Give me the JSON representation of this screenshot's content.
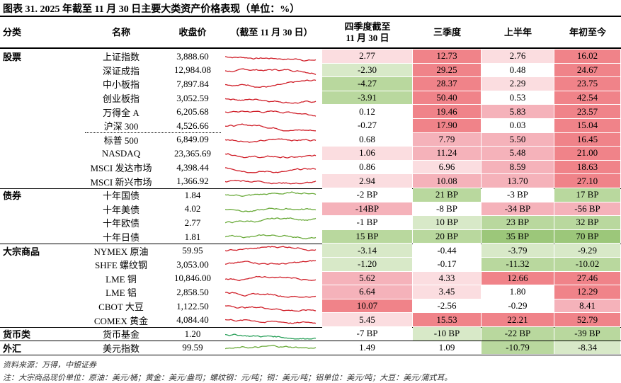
{
  "title": "图表 31. 2025 年截至 11 月 30 日主要大类资产价格表现（单位：%）",
  "header": {
    "group": "分类",
    "name": "名称",
    "close": "收盘价",
    "trend": "（截至 11 月 30 日）",
    "q4": [
      "四季度截至",
      "11 月 30 日"
    ],
    "q3": "三季度",
    "h1": "上半年",
    "ytd": "年初至今"
  },
  "groups": [
    {
      "name": "股票",
      "spark_color": "#d0202a",
      "rows": [
        [
          "上证指数",
          "3,888.60",
          "2.77",
          "12.73",
          "2.76",
          "16.02",
          [
            "#fbdde0",
            "#f08389",
            "#fbdde0",
            "#f08389"
          ]
        ],
        [
          "深证成指",
          "12,984.08",
          "-2.30",
          "29.25",
          "0.48",
          "24.67",
          [
            "#d8e9c8",
            "#f08389",
            "#ffffff",
            "#f08389"
          ]
        ],
        [
          "中小板指",
          "7,897.84",
          "-4.27",
          "28.37",
          "2.29",
          "23.75",
          [
            "#b9d89e",
            "#f08389",
            "#fbdde0",
            "#f08389"
          ]
        ],
        [
          "创业板指",
          "3,052.59",
          "-3.91",
          "50.40",
          "0.53",
          "42.54",
          [
            "#b9d89e",
            "#f08389",
            "#ffffff",
            "#f08389"
          ]
        ],
        [
          "万得全 A",
          "6,205.68",
          "0.12",
          "19.46",
          "5.83",
          "23.57",
          [
            "#ffffff",
            "#f08389",
            "#f5b2ba",
            "#f08389"
          ]
        ],
        [
          "沪深 300",
          "4,526.66",
          "-0.27",
          "17.90",
          "0.03",
          "15.04",
          [
            "#ffffff",
            "#f08389",
            "#ffffff",
            "#f08389"
          ]
        ],
        [
          "标普 500",
          "6,849.09",
          "0.68",
          "7.79",
          "5.50",
          "16.45",
          [
            "#ffffff",
            "#f5b2ba",
            "#f5b2ba",
            "#f08389"
          ]
        ],
        [
          "NASDAQ",
          "23,365.69",
          "1.06",
          "11.24",
          "5.48",
          "21.00",
          [
            "#fbdde0",
            "#f5b2ba",
            "#f5b2ba",
            "#f08389"
          ]
        ],
        [
          "MSCI 发达市场",
          "4,398.44",
          "0.86",
          "6.96",
          "8.59",
          "18.63",
          [
            "#ffffff",
            "#fbdde0",
            "#f5b2ba",
            "#f08389"
          ]
        ],
        [
          "MSCI 新兴市场",
          "1,366.92",
          "2.94",
          "10.08",
          "13.70",
          "27.10",
          [
            "#fbdde0",
            "#f5b2ba",
            "#f5b2ba",
            "#f08389"
          ]
        ]
      ]
    },
    {
      "name": "债券",
      "spark_color": "#6aaa3a",
      "rows": [
        [
          "十年国债",
          "1.84",
          "-2 BP",
          "21 BP",
          "-3 BP",
          "17 BP",
          [
            "#ffffff",
            "#b9d89e",
            "#ffffff",
            "#b9d89e"
          ]
        ],
        [
          "十年美债",
          "4.02",
          "-14BP",
          "-8 BP",
          "-34 BP",
          "-56 BP",
          [
            "#f5b2ba",
            "#ffffff",
            "#f5b2ba",
            "#f5b2ba"
          ]
        ],
        [
          "十年欧债",
          "2.77",
          "-1 BP",
          "10 BP",
          "23 BP",
          "32 BP",
          [
            "#ffffff",
            "#d8e9c8",
            "#b9d89e",
            "#b9d89e"
          ]
        ],
        [
          "十年日债",
          "1.81",
          "15 BP",
          "20 BP",
          "35 BP",
          "70 BP",
          [
            "#b9d89e",
            "#b9d89e",
            "#9cc77a",
            "#9cc77a"
          ]
        ]
      ]
    },
    {
      "name": "大宗商品",
      "spark_color": "#d0202a",
      "rows": [
        [
          "NYMEX 原油",
          "59.95",
          "-3.14",
          "-0.44",
          "-3.79",
          "-9.29",
          [
            "#d8e9c8",
            "#ffffff",
            "#d8e9c8",
            "#d8e9c8"
          ]
        ],
        [
          "SHFE 螺纹钢",
          "3,053.00",
          "-1.20",
          "-0.17",
          "-11.32",
          "-10.02",
          [
            "#d8e9c8",
            "#ffffff",
            "#b9d89e",
            "#b9d89e"
          ]
        ],
        [
          "LME 铜",
          "10,846.00",
          "5.62",
          "4.33",
          "12.66",
          "27.46",
          [
            "#f5b2ba",
            "#fbdde0",
            "#f08389",
            "#f08389"
          ]
        ],
        [
          "LME 铝",
          "2,858.50",
          "6.64",
          "3.45",
          "1.80",
          "12.29",
          [
            "#f5b2ba",
            "#fbdde0",
            "#ffffff",
            "#f08389"
          ]
        ],
        [
          "CBOT 大豆",
          "1,122.50",
          "10.07",
          "-2.56",
          "-0.29",
          "8.41",
          [
            "#f08389",
            "#ffffff",
            "#ffffff",
            "#f5b2ba"
          ]
        ],
        [
          "COMEX 黄金",
          "4,084.40",
          "5.45",
          "15.53",
          "22.21",
          "52.79",
          [
            "#fbdde0",
            "#f08389",
            "#f08389",
            "#f08389"
          ]
        ]
      ]
    },
    {
      "name": "货币类",
      "spark_color": "#2aa05a",
      "rows": [
        [
          "货币基金",
          "1.20",
          "-7 BP",
          "-10 BP",
          "-22 BP",
          "-39 BP",
          [
            "#ffffff",
            "#d8e9c8",
            "#b9d89e",
            "#b9d89e"
          ]
        ]
      ]
    },
    {
      "name": "外汇",
      "spark_color": "#6aaa3a",
      "rows": [
        [
          "美元指数",
          "99.59",
          "1.49",
          "1.09",
          "-10.79",
          "-8.34",
          [
            "#ffffff",
            "#ffffff",
            "#b9d89e",
            "#d8e9c8"
          ]
        ]
      ]
    }
  ],
  "notes": [
    "资料来源：万得，中银证券",
    "注：大宗商品现价单位：原油：美元/桶；黄金：美元/盎司；螺纹钢：元/吨；铜：美元/吨；铝单位：美元/吨；大豆：美元/蒲式耳。"
  ]
}
